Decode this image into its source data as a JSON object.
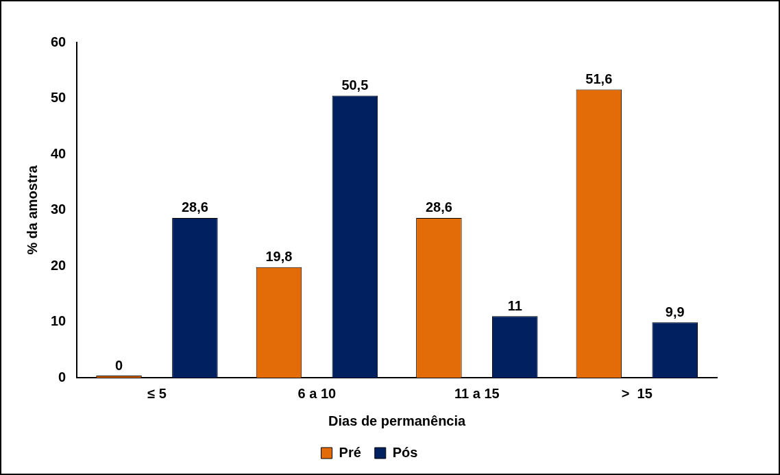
{
  "chart_data": {
    "type": "bar",
    "xlabel": "Dias de permanência",
    "ylabel": "% da amostra",
    "categories": [
      "≤ 5",
      "6 a 10",
      "11 a 15",
      ">  15"
    ],
    "series": [
      {
        "name": "Pré",
        "color": "#e36c09",
        "values": [
          0,
          19.8,
          28.6,
          51.6
        ],
        "value_labels": [
          "0",
          "19,8",
          "28,6",
          "51,6"
        ]
      },
      {
        "name": "Pós",
        "color": "#002060",
        "values": [
          28.6,
          50.5,
          11,
          9.9
        ],
        "value_labels": [
          "28,6",
          "50,5",
          "11",
          "9,9"
        ]
      }
    ],
    "ylim": [
      0,
      60
    ],
    "yticks": [
      0,
      10,
      20,
      30,
      40,
      50,
      60
    ],
    "grid": false,
    "legend": "bottom"
  }
}
